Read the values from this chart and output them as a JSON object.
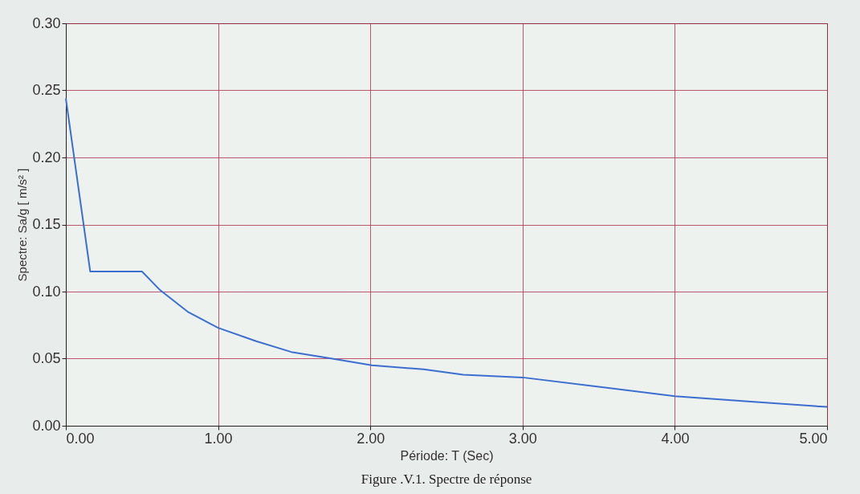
{
  "chart_data": {
    "type": "line",
    "xlabel": "Période: T (Sec)",
    "ylabel": "Spectre: Sa/g [ m/s² ]",
    "annotations": [
      "Figure .V.1. Spectre de réponse"
    ],
    "x": [
      0,
      0.16,
      0.5,
      0.62,
      0.8,
      1.0,
      1.25,
      1.48,
      1.75,
      2.01,
      2.35,
      2.61,
      3.0,
      3.5,
      4.0,
      4.5,
      5.0
    ],
    "series": [
      {
        "color": "#3a6fd0",
        "values": [
          0.244,
          0.115,
          0.115,
          0.101,
          0.085,
          0.073,
          0.063,
          0.055,
          0.05,
          0.045,
          0.042,
          0.038,
          0.036,
          0.029,
          0.022,
          0.018,
          0.014
        ]
      }
    ],
    "xlim": [
      0,
      5
    ],
    "xticks": [
      {
        "value": 0,
        "label": "0.00"
      },
      {
        "value": 1,
        "label": "1.00"
      },
      {
        "value": 2,
        "label": "2.00"
      },
      {
        "value": 3,
        "label": "3.00"
      },
      {
        "value": 4,
        "label": "4.00"
      },
      {
        "value": 5,
        "label": "5.00"
      }
    ],
    "ylim": [
      0,
      0.3
    ],
    "yticks": [
      {
        "value": 0,
        "label": "0.00"
      },
      {
        "value": 0.05,
        "label": "0.05"
      },
      {
        "value": 0.1,
        "label": "0.10"
      },
      {
        "value": 0.15,
        "label": "0.15"
      },
      {
        "value": 0.2,
        "label": "0.20"
      },
      {
        "value": 0.25,
        "label": "0.25"
      },
      {
        "value": 0.3,
        "label": "0.30"
      }
    ],
    "grid": true,
    "line_style": "solid"
  }
}
